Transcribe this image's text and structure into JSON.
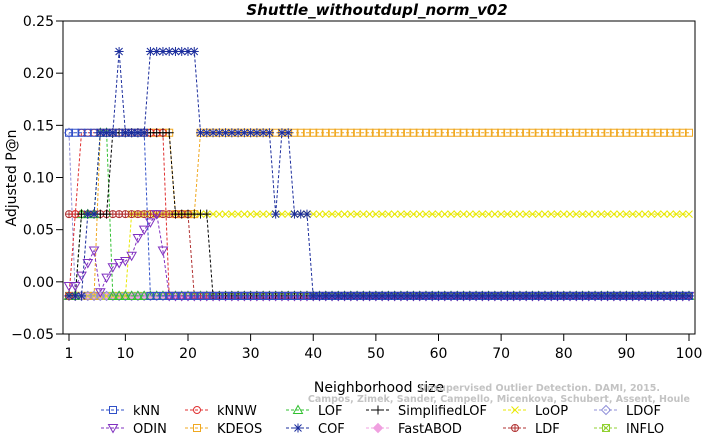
{
  "chart_data": {
    "type": "line",
    "title": "Shuttle_withoutdupl_norm_v02",
    "xlabel": "Neighborhood size",
    "ylabel": "Adjusted P@n",
    "xlim": [
      1,
      100
    ],
    "ylim": [
      -0.05,
      0.25
    ],
    "xticks": [
      1,
      10,
      20,
      30,
      40,
      50,
      60,
      70,
      80,
      90,
      100
    ],
    "yticks": [
      -0.05,
      0.0,
      0.05,
      0.1,
      0.15,
      0.2,
      0.25
    ],
    "ytick_labels": [
      "−0.05",
      "0.00",
      "0.05",
      "0.10",
      "0.15",
      "0.20",
      "0.25"
    ],
    "grid": false,
    "legend_position": "bottom",
    "watermark": "Source: Campos, Zimek, Sander, Campello, Micenkova, Schubert, Assent, Houle Unsupervised Outlier Detection. DAMI, 2015.",
    "series": [
      {
        "name": "kNN",
        "color": "#3050c8",
        "marker": "square",
        "segments": [
          [
            1,
            13,
            0.1429
          ],
          [
            14,
            100,
            -0.0135
          ]
        ]
      },
      {
        "name": "kNNW",
        "color": "#e03030",
        "marker": "circle",
        "segments": [
          [
            1,
            1,
            -0.0135
          ],
          [
            2,
            2,
            0.0649
          ],
          [
            3,
            16,
            0.1429
          ],
          [
            17,
            100,
            -0.0135
          ]
        ]
      },
      {
        "name": "LOF",
        "color": "#30c030",
        "marker": "triangle",
        "segments": [
          [
            1,
            2,
            -0.0135
          ],
          [
            3,
            5,
            0.0649
          ],
          [
            6,
            7,
            0.1429
          ],
          [
            8,
            100,
            -0.0135
          ]
        ]
      },
      {
        "name": "SimplifiedLOF",
        "color": "#000000",
        "marker": "plus",
        "segments": [
          [
            1,
            2,
            -0.0135
          ],
          [
            3,
            7,
            0.0649
          ],
          [
            8,
            17,
            0.1429
          ],
          [
            18,
            23,
            0.0649
          ],
          [
            24,
            100,
            -0.0135
          ]
        ]
      },
      {
        "name": "LoOP",
        "color": "#e8e800",
        "marker": "x",
        "segments": [
          [
            1,
            10,
            -0.0135
          ],
          [
            11,
            100,
            0.0649
          ]
        ]
      },
      {
        "name": "LDOF",
        "color": "#9090d8",
        "marker": "diamond",
        "segments": [
          [
            1,
            1,
            0.1429
          ],
          [
            2,
            100,
            -0.0135
          ]
        ]
      },
      {
        "name": "ODIN",
        "color": "#8030c0",
        "marker": "triangle-down",
        "values": [
          [
            1,
            -0.004
          ],
          [
            2,
            -0.004
          ],
          [
            3,
            0.006
          ],
          [
            4,
            0.018
          ],
          [
            5,
            0.03
          ],
          [
            6,
            -0.01
          ],
          [
            7,
            0.004
          ],
          [
            8,
            0.014
          ],
          [
            9,
            0.018
          ],
          [
            10,
            0.02
          ],
          [
            11,
            0.025
          ],
          [
            12,
            0.042
          ],
          [
            13,
            0.05
          ],
          [
            14,
            0.057
          ],
          [
            15,
            0.0649
          ],
          [
            16,
            0.03
          ],
          [
            17,
            -0.0135
          ],
          [
            100,
            -0.0135
          ]
        ]
      },
      {
        "name": "KDEOS",
        "color": "#f0a820",
        "marker": "square",
        "segments": [
          [
            1,
            5,
            -0.0135
          ],
          [
            6,
            17,
            0.1429
          ],
          [
            18,
            21,
            0.0649
          ],
          [
            22,
            100,
            0.1429
          ]
        ]
      },
      {
        "name": "COF",
        "color": "#1a2c9c",
        "marker": "asterisk",
        "values": [
          [
            1,
            -0.0135
          ],
          [
            3,
            -0.0135
          ],
          [
            4,
            0.0649
          ],
          [
            5,
            0.0649
          ],
          [
            6,
            0.1429
          ],
          [
            8,
            0.1429
          ],
          [
            9,
            0.2208
          ],
          [
            10,
            0.1429
          ],
          [
            13,
            0.1429
          ],
          [
            14,
            0.2208
          ],
          [
            21,
            0.2208
          ],
          [
            22,
            0.1429
          ],
          [
            33,
            0.1429
          ],
          [
            34,
            0.0649
          ],
          [
            35,
            0.1429
          ],
          [
            36,
            0.1429
          ],
          [
            37,
            0.0649
          ],
          [
            39,
            0.0649
          ],
          [
            40,
            -0.0135
          ],
          [
            100,
            -0.0135
          ]
        ]
      },
      {
        "name": "FastABOD",
        "color": "#f0a0e0",
        "marker": "diamond-filled",
        "segments": [
          [
            1,
            100,
            -0.0135
          ]
        ]
      },
      {
        "name": "LDF",
        "color": "#b03030",
        "marker": "circle-plus",
        "segments": [
          [
            1,
            3,
            0.0649
          ],
          [
            4,
            20,
            0.0649
          ],
          [
            21,
            100,
            -0.0135
          ]
        ]
      },
      {
        "name": "INFLO",
        "color": "#90d030",
        "marker": "square-x",
        "segments": [
          [
            1,
            100,
            -0.0135
          ]
        ]
      }
    ]
  }
}
